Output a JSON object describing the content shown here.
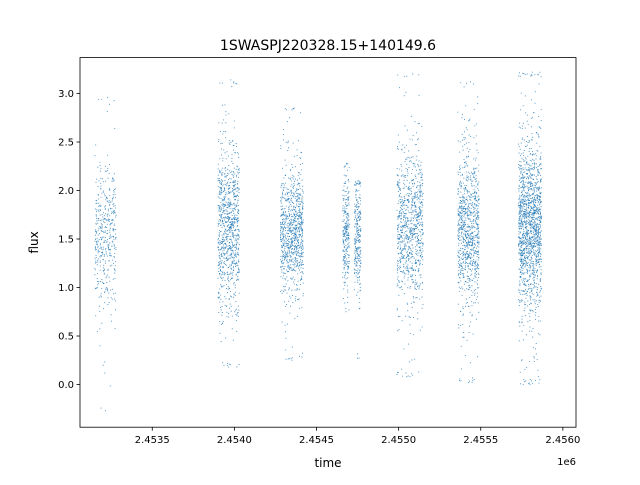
{
  "chart_data": {
    "type": "scatter",
    "title": "1SWASPJ220328.15+140149.6",
    "xlabel": "time",
    "ylabel": "flux",
    "x_offset_label": "1e6",
    "xlim": [
      2453060,
      2456080
    ],
    "ylim": [
      -0.44,
      3.37
    ],
    "x_ticks": [
      2453500,
      2454000,
      2454500,
      2455000,
      2455500,
      2456000
    ],
    "x_tick_labels": [
      "2.4535",
      "2.4540",
      "2.4545",
      "2.4550",
      "2.4555",
      "2.4560"
    ],
    "y_ticks": [
      0.0,
      0.5,
      1.0,
      1.5,
      2.0,
      2.5,
      3.0
    ],
    "y_tick_labels": [
      "0.0",
      "0.5",
      "1.0",
      "1.5",
      "2.0",
      "2.5",
      "3.0"
    ],
    "grid": false,
    "legend": "none",
    "series": [
      {
        "color": "#1f77b4",
        "marker": "point",
        "observing_seasons": [
          {
            "x_range": [
              2453150,
              2453280
            ],
            "flux_range": [
              -0.27,
              2.96
            ],
            "core_flux": [
              0.95,
              2.15
            ],
            "density": "medium"
          },
          {
            "x_range": [
              2453900,
              2454030
            ],
            "flux_range": [
              0.18,
              3.14
            ],
            "core_flux": [
              0.95,
              2.3
            ],
            "density": "high"
          },
          {
            "x_range": [
              2454280,
              2454420
            ],
            "flux_range": [
              0.25,
              2.85
            ],
            "core_flux": [
              1.0,
              2.15
            ],
            "density": "high"
          },
          {
            "x_range": [
              2454660,
              2454700
            ],
            "flux_range": [
              0.75,
              2.28
            ],
            "core_flux": [
              1.05,
              2.1
            ],
            "density": "low"
          },
          {
            "x_range": [
              2454730,
              2454770
            ],
            "flux_range": [
              0.27,
              2.1
            ],
            "core_flux": [
              1.0,
              2.0
            ],
            "density": "low"
          },
          {
            "x_range": [
              2454990,
              2455150
            ],
            "flux_range": [
              0.08,
              3.2
            ],
            "core_flux": [
              0.9,
              2.3
            ],
            "density": "high"
          },
          {
            "x_range": [
              2455360,
              2455490
            ],
            "flux_range": [
              0.02,
              3.12
            ],
            "core_flux": [
              0.9,
              2.3
            ],
            "density": "high"
          },
          {
            "x_range": [
              2455730,
              2455870
            ],
            "flux_range": [
              0.0,
              3.22
            ],
            "core_flux": [
              0.9,
              2.4
            ],
            "density": "very-high"
          }
        ]
      }
    ]
  }
}
